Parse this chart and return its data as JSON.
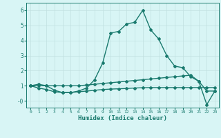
{
  "line1_x": [
    0,
    1,
    2,
    3,
    4,
    5,
    6,
    7,
    8,
    9,
    10,
    11,
    12,
    13,
    14,
    15,
    16,
    17,
    18,
    19,
    20,
    21,
    22,
    23
  ],
  "line1_y": [
    1.0,
    1.1,
    1.0,
    0.7,
    0.55,
    0.55,
    0.65,
    0.85,
    1.4,
    2.5,
    4.5,
    4.6,
    5.1,
    5.2,
    6.0,
    4.7,
    4.1,
    3.0,
    2.3,
    2.2,
    1.6,
    1.3,
    0.65,
    0.65
  ],
  "line2_x": [
    0,
    1,
    2,
    3,
    4,
    5,
    6,
    7,
    8,
    9,
    10,
    11,
    12,
    13,
    14,
    15,
    16,
    17,
    18,
    19,
    20,
    21,
    22,
    23
  ],
  "line2_y": [
    1.0,
    1.0,
    1.0,
    1.0,
    1.0,
    1.0,
    1.0,
    1.05,
    1.1,
    1.15,
    1.2,
    1.25,
    1.3,
    1.35,
    1.4,
    1.45,
    1.5,
    1.55,
    1.6,
    1.65,
    1.7,
    1.3,
    -0.25,
    0.65
  ],
  "line3_x": [
    0,
    1,
    2,
    3,
    4,
    5,
    6,
    7,
    8,
    9,
    10,
    11,
    12,
    13,
    14,
    15,
    16,
    17,
    18,
    19,
    20,
    21,
    22,
    23
  ],
  "line3_y": [
    1.0,
    0.85,
    0.75,
    0.6,
    0.55,
    0.55,
    0.6,
    0.65,
    0.7,
    0.75,
    0.78,
    0.8,
    0.82,
    0.85,
    0.87,
    0.88,
    0.88,
    0.88,
    0.88,
    0.88,
    0.88,
    0.88,
    0.88,
    0.88
  ],
  "line_color": "#1a7a6e",
  "bg_color": "#d8f5f5",
  "grid_color": "#c0e0e0",
  "xlabel": "Humidex (Indice chaleur)",
  "xlim": [
    -0.5,
    23.5
  ],
  "ylim": [
    -0.45,
    6.5
  ],
  "yticks": [
    0,
    1,
    2,
    3,
    4,
    5,
    6
  ],
  "ytick_labels": [
    "-0",
    "1",
    "2",
    "3",
    "4",
    "5",
    "6"
  ],
  "xticks": [
    0,
    1,
    2,
    3,
    4,
    5,
    6,
    7,
    8,
    9,
    10,
    11,
    12,
    13,
    14,
    15,
    16,
    17,
    18,
    19,
    20,
    21,
    22,
    23
  ],
  "marker": "D",
  "marker_size": 2.0,
  "line_width": 1.0
}
